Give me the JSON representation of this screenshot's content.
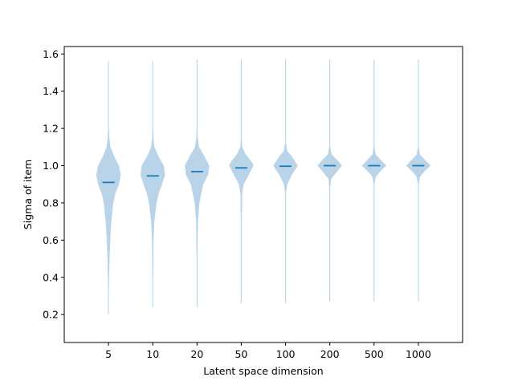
{
  "chart_data": {
    "type": "violin",
    "title": "",
    "xlabel": "Latent space dimension",
    "ylabel": "Sigma of item",
    "ylim": [
      0.05,
      1.64
    ],
    "yticks": [
      0.2,
      0.4,
      0.6,
      0.8,
      1.0,
      1.2,
      1.4,
      1.6
    ],
    "ytick_labels": [
      "0.2",
      "0.4",
      "0.6",
      "0.8",
      "1.0",
      "1.2",
      "1.4",
      "1.6"
    ],
    "categories": [
      "5",
      "10",
      "20",
      "50",
      "100",
      "200",
      "500",
      "1000"
    ],
    "grid": false,
    "fill_color": "#b9d4e8",
    "median_color": "#1f77b4",
    "medians": [
      0.91,
      0.945,
      0.968,
      0.988,
      0.997,
      1.0,
      1.0,
      1.0
    ],
    "ranges": [
      [
        0.2,
        1.56
      ],
      [
        0.24,
        1.56
      ],
      [
        0.24,
        1.57
      ],
      [
        0.26,
        1.57
      ],
      [
        0.26,
        1.57
      ],
      [
        0.27,
        1.57
      ],
      [
        0.27,
        1.57
      ],
      [
        0.27,
        1.57
      ]
    ],
    "density_profiles": [
      [
        [
          0.2,
          0.0
        ],
        [
          0.3,
          0.015
        ],
        [
          0.4,
          0.03
        ],
        [
          0.5,
          0.07
        ],
        [
          0.6,
          0.13
        ],
        [
          0.7,
          0.22
        ],
        [
          0.8,
          0.38
        ],
        [
          0.85,
          0.55
        ],
        [
          0.9,
          0.85
        ],
        [
          0.95,
          1.0
        ],
        [
          1.0,
          0.85
        ],
        [
          1.05,
          0.45
        ],
        [
          1.1,
          0.15
        ],
        [
          1.15,
          0.05
        ],
        [
          1.2,
          0.015
        ],
        [
          1.3,
          0.005
        ],
        [
          1.56,
          0.0
        ]
      ],
      [
        [
          0.24,
          0.0
        ],
        [
          0.4,
          0.015
        ],
        [
          0.6,
          0.05
        ],
        [
          0.7,
          0.12
        ],
        [
          0.8,
          0.3
        ],
        [
          0.85,
          0.48
        ],
        [
          0.9,
          0.75
        ],
        [
          0.95,
          1.0
        ],
        [
          1.0,
          0.9
        ],
        [
          1.05,
          0.45
        ],
        [
          1.1,
          0.12
        ],
        [
          1.15,
          0.04
        ],
        [
          1.2,
          0.01
        ],
        [
          1.56,
          0.0
        ]
      ],
      [
        [
          0.24,
          0.0
        ],
        [
          0.5,
          0.012
        ],
        [
          0.7,
          0.06
        ],
        [
          0.8,
          0.18
        ],
        [
          0.9,
          0.5
        ],
        [
          0.95,
          0.9
        ],
        [
          1.0,
          1.0
        ],
        [
          1.05,
          0.6
        ],
        [
          1.1,
          0.15
        ],
        [
          1.15,
          0.04
        ],
        [
          1.2,
          0.01
        ],
        [
          1.57,
          0.0
        ]
      ],
      [
        [
          0.26,
          0.0
        ],
        [
          0.7,
          0.01
        ],
        [
          0.85,
          0.06
        ],
        [
          0.9,
          0.18
        ],
        [
          0.95,
          0.6
        ],
        [
          1.0,
          1.0
        ],
        [
          1.02,
          0.85
        ],
        [
          1.06,
          0.35
        ],
        [
          1.1,
          0.06
        ],
        [
          1.15,
          0.01
        ],
        [
          1.57,
          0.0
        ]
      ],
      [
        [
          0.26,
          0.0
        ],
        [
          0.85,
          0.02
        ],
        [
          0.9,
          0.12
        ],
        [
          0.95,
          0.5
        ],
        [
          1.0,
          1.0
        ],
        [
          1.05,
          0.5
        ],
        [
          1.08,
          0.12
        ],
        [
          1.12,
          0.02
        ],
        [
          1.57,
          0.0
        ]
      ],
      [
        [
          0.27,
          0.0
        ],
        [
          0.88,
          0.02
        ],
        [
          0.93,
          0.1
        ],
        [
          0.97,
          0.6
        ],
        [
          1.0,
          1.0
        ],
        [
          1.03,
          0.6
        ],
        [
          1.06,
          0.15
        ],
        [
          1.1,
          0.02
        ],
        [
          1.57,
          0.0
        ]
      ],
      [
        [
          0.27,
          0.0
        ],
        [
          0.9,
          0.02
        ],
        [
          0.94,
          0.12
        ],
        [
          0.97,
          0.5
        ],
        [
          1.0,
          1.0
        ],
        [
          1.03,
          0.55
        ],
        [
          1.06,
          0.12
        ],
        [
          1.1,
          0.02
        ],
        [
          1.57,
          0.0
        ]
      ],
      [
        [
          0.27,
          0.0
        ],
        [
          0.9,
          0.02
        ],
        [
          0.94,
          0.12
        ],
        [
          0.97,
          0.5
        ],
        [
          1.0,
          1.0
        ],
        [
          1.03,
          0.55
        ],
        [
          1.06,
          0.12
        ],
        [
          1.1,
          0.02
        ],
        [
          1.57,
          0.0
        ]
      ]
    ]
  }
}
